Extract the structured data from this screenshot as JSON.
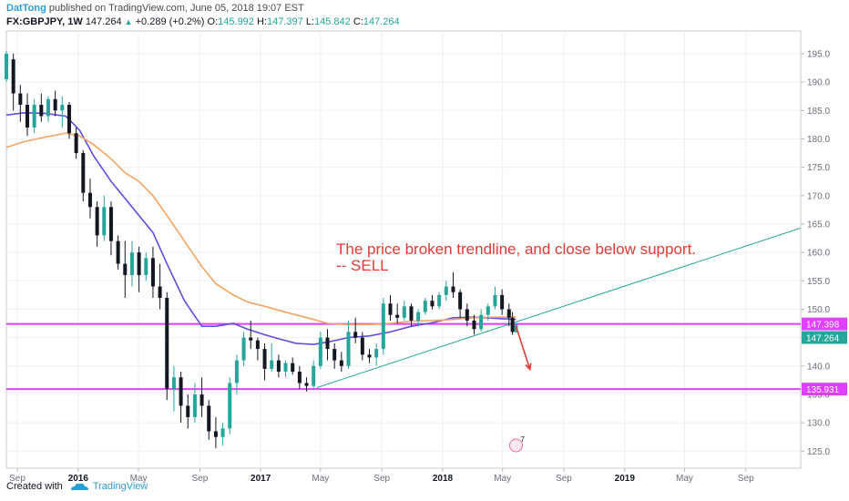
{
  "header": {
    "author": "DatTong",
    "published": "published on TradingView.com, June 05, 2018 19:07 EST",
    "symbol": "FX:GBPJPY, 1W",
    "last": "147.264",
    "change": "+0.289 (+0.2%)",
    "open_label": "O:",
    "open": "145.992",
    "high_label": "H:",
    "high": "147.397",
    "low_label": "L:",
    "low": "145.842",
    "close_label": "C:",
    "close": "147.264"
  },
  "footer": {
    "created_with": "Created with",
    "brand": "TradingView",
    "logo_icon": "tradingview-cloud-icon"
  },
  "annotation": {
    "line1": "The price broken trendline, and close below support.",
    "line2": "-- SELL"
  },
  "event_marker": {
    "icon": "dividend-event-icon",
    "count": "7"
  },
  "colors": {
    "up": "#26a69a",
    "down": "#131722",
    "ma_fast": "#5b4ee0",
    "ma_slow": "#f4a460",
    "support": "#e040fb",
    "trendline": "#26a69a",
    "annotation": "#e53935",
    "price_tag": "#26a69a"
  },
  "chart_data": {
    "type": "candlestick",
    "x_axis": {
      "ticks": [
        "Sep",
        "2016",
        "May",
        "Sep",
        "2017",
        "May",
        "Sep",
        "2018",
        "May",
        "Sep",
        "2019",
        "May",
        "Sep"
      ],
      "tick_dates": [
        "2015-09-01",
        "2016-01-01",
        "2016-05-01",
        "2016-09-01",
        "2017-01-01",
        "2017-05-01",
        "2017-09-01",
        "2018-01-01",
        "2018-05-01",
        "2018-09-01",
        "2019-01-01",
        "2019-05-01",
        "2019-09-01"
      ],
      "range": [
        "2015-08-10",
        "2019-12-20"
      ]
    },
    "y_axis": {
      "ticks": [
        125.0,
        130.0,
        135.0,
        140.0,
        145.0,
        150.0,
        155.0,
        160.0,
        165.0,
        170.0,
        175.0,
        180.0,
        185.0,
        190.0,
        195.0
      ],
      "range": [
        122.0,
        199.0
      ],
      "position": "right"
    },
    "grid": true,
    "horizontal_levels": [
      {
        "value": 147.398,
        "label": "147.398"
      },
      {
        "value": 135.931,
        "label": "135.931"
      }
    ],
    "current_price": {
      "value": 147.264,
      "label": "147.264"
    },
    "trendline": {
      "from": [
        "2017-04-24",
        136.2
      ],
      "to": [
        "2019-12-20",
        164.3
      ]
    },
    "arrow": {
      "from": [
        "2018-05-28",
        147.0
      ],
      "to": [
        "2018-06-25",
        139.4
      ]
    },
    "series": [
      {
        "name": "",
        "kind": "ma",
        "id": "ma_fast",
        "points": [
          [
            "2015-08-10",
            184.2
          ],
          [
            "2015-09-14",
            184.6
          ],
          [
            "2015-10-26",
            184.5
          ],
          [
            "2015-12-07",
            184.0
          ],
          [
            "2016-01-04",
            181.5
          ],
          [
            "2016-02-01",
            177.0
          ],
          [
            "2016-03-07",
            172.5
          ],
          [
            "2016-04-04",
            169.5
          ],
          [
            "2016-05-02",
            166.5
          ],
          [
            "2016-05-30",
            163.5
          ],
          [
            "2016-06-27",
            158.0
          ],
          [
            "2016-08-01",
            151.5
          ],
          [
            "2016-09-05",
            147.0
          ],
          [
            "2016-10-03",
            147.0
          ],
          [
            "2016-11-07",
            147.5
          ],
          [
            "2016-12-05",
            146.5
          ],
          [
            "2017-01-09",
            145.5
          ],
          [
            "2017-02-06",
            144.8
          ],
          [
            "2017-03-13",
            144.0
          ],
          [
            "2017-04-17",
            143.8
          ],
          [
            "2017-05-15",
            144.2
          ],
          [
            "2017-06-26",
            145.0
          ],
          [
            "2017-08-07",
            145.3
          ],
          [
            "2017-09-18",
            146.0
          ],
          [
            "2017-10-30",
            147.0
          ],
          [
            "2017-12-11",
            147.6
          ],
          [
            "2018-01-22",
            148.5
          ],
          [
            "2018-03-05",
            148.6
          ],
          [
            "2018-04-16",
            148.4
          ],
          [
            "2018-05-28",
            148.2
          ]
        ]
      },
      {
        "name": "",
        "kind": "ma",
        "id": "ma_slow",
        "points": [
          [
            "2015-08-10",
            178.5
          ],
          [
            "2015-09-14",
            179.5
          ],
          [
            "2015-10-26",
            180.3
          ],
          [
            "2015-12-07",
            181.0
          ],
          [
            "2016-01-04",
            180.5
          ],
          [
            "2016-02-01",
            179.0
          ],
          [
            "2016-03-07",
            176.5
          ],
          [
            "2016-04-04",
            174.0
          ],
          [
            "2016-05-02",
            172.5
          ],
          [
            "2016-05-30",
            170.0
          ],
          [
            "2016-06-27",
            166.5
          ],
          [
            "2016-08-01",
            162.0
          ],
          [
            "2016-09-05",
            157.5
          ],
          [
            "2016-10-03",
            154.5
          ],
          [
            "2016-11-07",
            152.5
          ],
          [
            "2016-12-05",
            151.3
          ],
          [
            "2017-01-09",
            150.5
          ],
          [
            "2017-02-06",
            149.8
          ],
          [
            "2017-03-13",
            149.0
          ],
          [
            "2017-04-17",
            148.2
          ],
          [
            "2017-05-15",
            147.5
          ],
          [
            "2017-06-26",
            147.3
          ],
          [
            "2017-08-07",
            147.3
          ],
          [
            "2017-09-18",
            147.5
          ],
          [
            "2017-10-30",
            147.9
          ],
          [
            "2017-12-11",
            148.0
          ],
          [
            "2018-01-22",
            148.2
          ],
          [
            "2018-03-05",
            148.5
          ],
          [
            "2018-04-16",
            148.6
          ],
          [
            "2018-05-28",
            148.6
          ]
        ]
      },
      {
        "name": "",
        "kind": "candles",
        "id": "price",
        "ohlc": [
          [
            "2015-08-10",
            190.5,
            195.5,
            190.0,
            195.0
          ],
          [
            "2015-08-24",
            194.0,
            195.0,
            185.0,
            188.0
          ],
          [
            "2015-09-07",
            188.0,
            189.5,
            183.0,
            186.0
          ],
          [
            "2015-09-21",
            186.0,
            188.0,
            180.5,
            182.0
          ],
          [
            "2015-10-05",
            182.0,
            187.0,
            181.0,
            186.0
          ],
          [
            "2015-10-19",
            186.0,
            188.0,
            183.0,
            184.0
          ],
          [
            "2015-11-02",
            184.0,
            187.5,
            183.0,
            187.0
          ],
          [
            "2015-11-16",
            187.0,
            188.5,
            184.0,
            185.0
          ],
          [
            "2015-11-30",
            185.0,
            187.5,
            182.0,
            186.0
          ],
          [
            "2015-12-14",
            186.0,
            186.5,
            180.0,
            181.0
          ],
          [
            "2015-12-28",
            181.0,
            182.0,
            176.5,
            177.5
          ],
          [
            "2016-01-11",
            177.5,
            178.0,
            169.0,
            170.5
          ],
          [
            "2016-01-25",
            170.5,
            173.0,
            166.0,
            168.0
          ],
          [
            "2016-02-08",
            168.0,
            169.0,
            161.0,
            163.0
          ],
          [
            "2016-02-22",
            163.0,
            170.0,
            162.0,
            168.0
          ],
          [
            "2016-03-07",
            168.0,
            169.0,
            159.5,
            162.0
          ],
          [
            "2016-03-21",
            162.0,
            163.0,
            157.0,
            158.0
          ],
          [
            "2016-04-04",
            158.0,
            162.0,
            152.0,
            156.0
          ],
          [
            "2016-04-18",
            156.0,
            162.0,
            154.0,
            160.0
          ],
          [
            "2016-05-02",
            160.0,
            161.0,
            153.0,
            156.0
          ],
          [
            "2016-05-16",
            156.0,
            160.0,
            155.0,
            159.0
          ],
          [
            "2016-05-30",
            159.0,
            161.0,
            152.0,
            154.0
          ],
          [
            "2016-06-13",
            154.0,
            158.0,
            150.0,
            152.0
          ],
          [
            "2016-06-27",
            152.0,
            153.0,
            134.0,
            136.0
          ],
          [
            "2016-07-11",
            136.0,
            140.0,
            132.0,
            138.0
          ],
          [
            "2016-07-25",
            138.0,
            139.0,
            130.0,
            133.0
          ],
          [
            "2016-08-08",
            133.0,
            135.0,
            129.0,
            131.0
          ],
          [
            "2016-08-22",
            131.0,
            137.0,
            130.0,
            135.0
          ],
          [
            "2016-09-05",
            135.0,
            138.0,
            131.0,
            133.0
          ],
          [
            "2016-09-19",
            133.0,
            134.0,
            127.0,
            128.5
          ],
          [
            "2016-10-03",
            128.5,
            131.0,
            125.5,
            127.5
          ],
          [
            "2016-10-17",
            127.5,
            130.0,
            126.0,
            129.0
          ],
          [
            "2016-10-31",
            129.0,
            138.0,
            128.0,
            137.0
          ],
          [
            "2016-11-14",
            137.0,
            142.0,
            135.0,
            141.0
          ],
          [
            "2016-11-28",
            141.0,
            146.0,
            140.0,
            145.0
          ],
          [
            "2016-12-12",
            145.0,
            148.0,
            143.0,
            144.5
          ],
          [
            "2016-12-26",
            144.5,
            145.0,
            141.0,
            143.0
          ],
          [
            "2017-01-09",
            143.0,
            144.0,
            137.5,
            139.5
          ],
          [
            "2017-01-23",
            139.5,
            144.0,
            139.0,
            141.0
          ],
          [
            "2017-02-06",
            141.0,
            142.0,
            138.0,
            139.0
          ],
          [
            "2017-02-20",
            139.0,
            141.0,
            138.0,
            140.5
          ],
          [
            "2017-03-06",
            140.5,
            141.5,
            138.5,
            139.0
          ],
          [
            "2017-03-20",
            139.0,
            140.0,
            136.0,
            137.0
          ],
          [
            "2017-04-03",
            137.0,
            138.0,
            135.5,
            136.5
          ],
          [
            "2017-04-17",
            136.5,
            141.0,
            136.0,
            140.0
          ],
          [
            "2017-05-01",
            140.0,
            146.0,
            139.5,
            145.0
          ],
          [
            "2017-05-15",
            145.0,
            146.5,
            141.0,
            143.0
          ],
          [
            "2017-05-29",
            143.0,
            144.0,
            139.5,
            141.0
          ],
          [
            "2017-06-12",
            141.0,
            142.5,
            139.0,
            140.0
          ],
          [
            "2017-06-26",
            140.0,
            148.0,
            139.5,
            146.0
          ],
          [
            "2017-07-10",
            146.0,
            148.5,
            144.0,
            145.0
          ],
          [
            "2017-07-24",
            145.0,
            146.0,
            141.0,
            142.0
          ],
          [
            "2017-08-07",
            142.0,
            143.0,
            140.5,
            141.5
          ],
          [
            "2017-08-21",
            141.5,
            144.0,
            140.0,
            143.0
          ],
          [
            "2017-09-04",
            143.0,
            152.0,
            142.0,
            151.0
          ],
          [
            "2017-09-18",
            151.0,
            152.5,
            148.0,
            149.0
          ],
          [
            "2017-10-02",
            149.0,
            151.0,
            147.5,
            148.5
          ],
          [
            "2017-10-16",
            148.5,
            151.5,
            148.0,
            150.5
          ],
          [
            "2017-10-30",
            150.5,
            151.0,
            147.0,
            148.0
          ],
          [
            "2017-11-13",
            148.0,
            150.0,
            147.0,
            149.5
          ],
          [
            "2017-11-27",
            149.5,
            152.0,
            149.0,
            151.5
          ],
          [
            "2017-12-11",
            151.5,
            152.5,
            150.0,
            150.5
          ],
          [
            "2017-12-25",
            150.5,
            153.0,
            150.0,
            152.5
          ],
          [
            "2018-01-08",
            152.5,
            155.0,
            151.5,
            154.0
          ],
          [
            "2018-01-22",
            154.0,
            156.5,
            152.0,
            153.0
          ],
          [
            "2018-02-05",
            153.0,
            153.5,
            148.5,
            150.0
          ],
          [
            "2018-02-19",
            150.0,
            151.0,
            147.0,
            148.0
          ],
          [
            "2018-03-05",
            148.0,
            149.0,
            145.5,
            146.5
          ],
          [
            "2018-03-19",
            146.5,
            150.0,
            146.0,
            149.0
          ],
          [
            "2018-04-02",
            149.0,
            151.0,
            148.0,
            150.5
          ],
          [
            "2018-04-16",
            150.5,
            154.0,
            150.0,
            152.5
          ],
          [
            "2018-04-30",
            152.5,
            153.5,
            149.0,
            150.0
          ],
          [
            "2018-05-14",
            150.0,
            151.0,
            147.0,
            148.5
          ],
          [
            "2018-05-21",
            148.5,
            149.5,
            145.5,
            146.0
          ],
          [
            "2018-05-28",
            145.992,
            147.397,
            145.842,
            147.264
          ]
        ]
      }
    ]
  }
}
